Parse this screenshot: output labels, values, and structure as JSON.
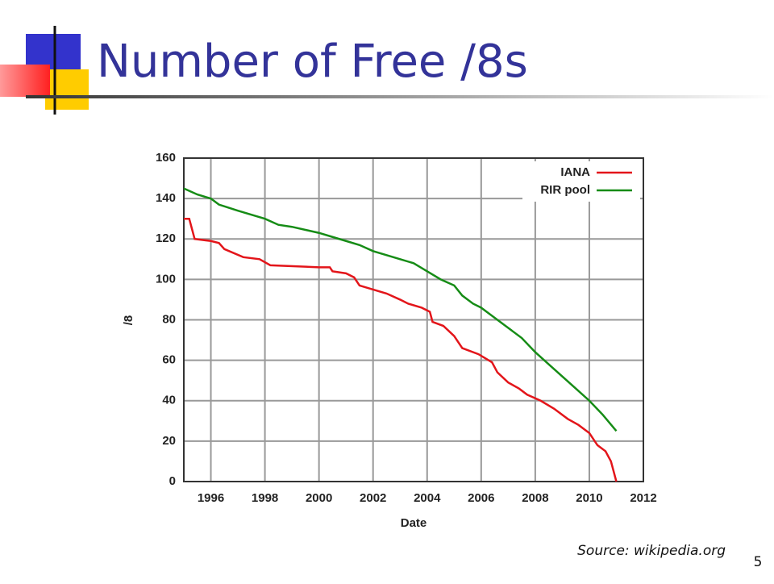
{
  "title": "Number of Free /8s",
  "source": "Source: wikipedia.org",
  "page_number": "5",
  "chart_data": {
    "type": "line",
    "xlabel": "Date",
    "ylabel": "/8",
    "xlim": [
      1995,
      2012
    ],
    "xticks": [
      1996,
      1998,
      2000,
      2002,
      2004,
      2006,
      2008,
      2010,
      2012
    ],
    "ylim": [
      0,
      160
    ],
    "yticks": [
      0,
      20,
      40,
      60,
      80,
      100,
      120,
      140,
      160
    ],
    "grid": true,
    "legend": "upper-right",
    "series": [
      {
        "name": "IANA",
        "color": "#e3151a",
        "x": [
          1995.0,
          1995.2,
          1995.4,
          1996.0,
          1996.3,
          1996.5,
          1997.2,
          1997.8,
          1998.2,
          2000.0,
          2000.4,
          2000.5,
          2001.0,
          2001.3,
          2001.5,
          2002.0,
          2002.5,
          2003.0,
          2003.3,
          2003.8,
          2004.1,
          2004.2,
          2004.6,
          2005.0,
          2005.3,
          2005.9,
          2006.4,
          2006.6,
          2007.0,
          2007.4,
          2007.7,
          2008.2,
          2008.7,
          2009.2,
          2009.6,
          2010.0,
          2010.3,
          2010.6,
          2010.8,
          2010.9,
          2011.0
        ],
        "values": [
          130,
          130,
          120,
          119,
          118,
          115,
          111,
          110,
          107,
          106,
          106,
          104,
          103,
          101,
          97,
          95,
          93,
          90,
          88,
          86,
          84,
          79,
          77,
          72,
          66,
          63,
          59,
          54,
          49,
          46,
          43,
          40,
          36,
          31,
          28,
          24,
          18,
          15,
          10,
          5,
          0
        ]
      },
      {
        "name": "RIR pool",
        "color": "#168c16",
        "x": [
          1995.0,
          1995.5,
          1996.0,
          1996.3,
          1997.0,
          1997.5,
          1998.0,
          1998.5,
          1999.0,
          2000.0,
          2000.5,
          2001.0,
          2001.5,
          2002.0,
          2002.5,
          2003.0,
          2003.5,
          2004.0,
          2004.5,
          2005.0,
          2005.3,
          2005.7,
          2006.0,
          2006.5,
          2007.0,
          2007.5,
          2008.0,
          2008.5,
          2009.0,
          2009.5,
          2010.0,
          2010.5,
          2011.0
        ],
        "values": [
          145,
          142,
          140,
          137,
          134,
          132,
          130,
          127,
          126,
          123,
          121,
          119,
          117,
          114,
          112,
          110,
          108,
          104,
          100,
          97,
          92,
          88,
          86,
          81,
          76,
          71,
          64,
          58,
          52,
          46,
          40,
          33,
          25
        ]
      }
    ]
  }
}
